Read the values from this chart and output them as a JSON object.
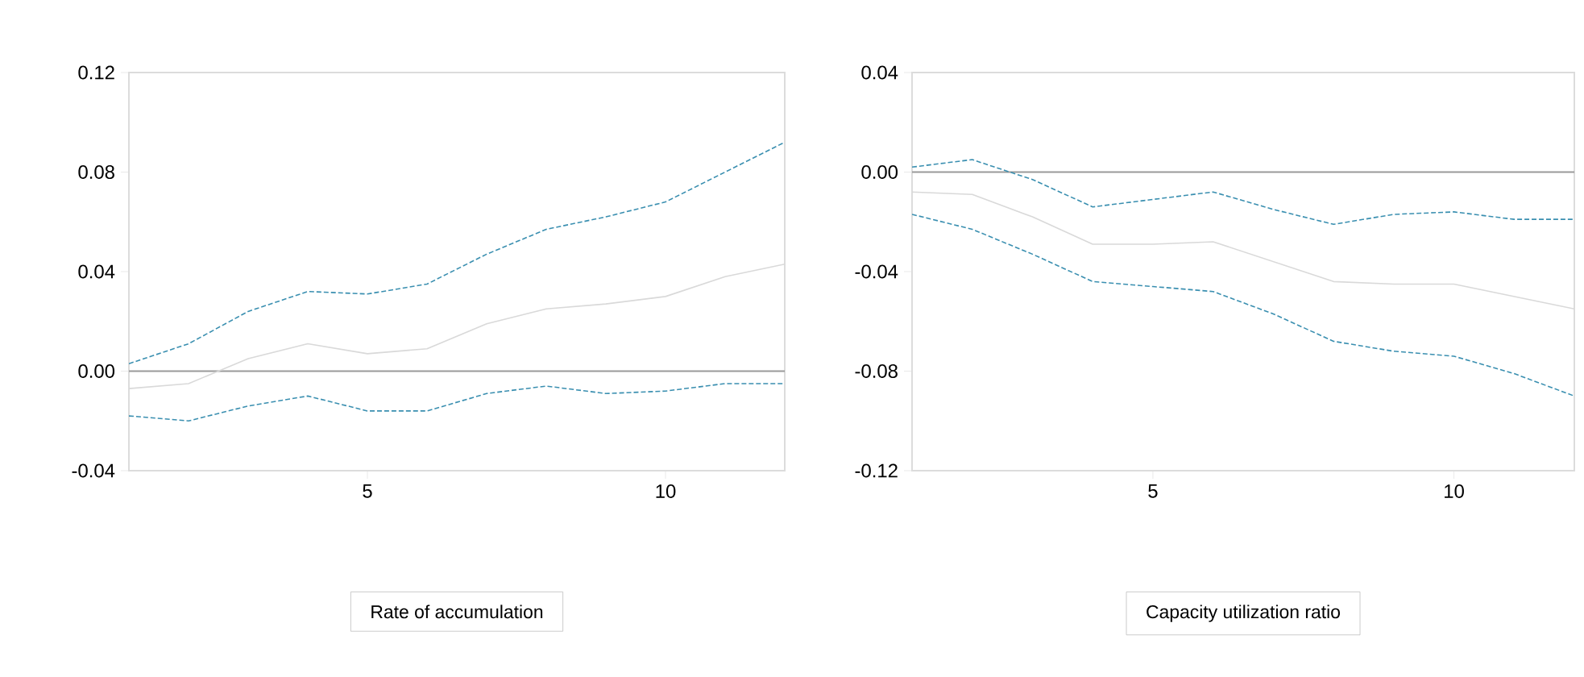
{
  "chart_data": [
    {
      "type": "line",
      "xlabel": "Rate of accumulation",
      "x": [
        1,
        2,
        3,
        4,
        5,
        6,
        7,
        8,
        9,
        10,
        11,
        12
      ],
      "xlim": [
        1,
        12
      ],
      "xticks": [
        5,
        10
      ],
      "ylim": [
        -0.04,
        0.12
      ],
      "yticks": [
        {
          "value": -0.04,
          "label": "-0.04"
        },
        {
          "value": 0,
          "label": "0.00"
        },
        {
          "value": 0.04,
          "label": "0.04"
        },
        {
          "value": 0.08,
          "label": "0.08"
        },
        {
          "value": 0.12,
          "label": "0.12"
        }
      ],
      "grid": false,
      "marker": "none",
      "ref_lines": [
        {
          "axis": "y",
          "value": 0,
          "color": "#9a9a9a",
          "line_style": "solid"
        }
      ],
      "series": [
        {
          "color": "#3a8fb0",
          "line_style": "dashed",
          "values": [
            0.003,
            0.011,
            0.024,
            0.032,
            0.031,
            0.035,
            0.047,
            0.057,
            0.062,
            0.068,
            0.08,
            0.092
          ]
        },
        {
          "color": "#d9d9d9",
          "line_style": "solid",
          "values": [
            -0.007,
            -0.005,
            0.005,
            0.011,
            0.007,
            0.009,
            0.019,
            0.025,
            0.027,
            0.03,
            0.038,
            0.043
          ]
        },
        {
          "color": "#3a8fb0",
          "line_style": "dashed",
          "values": [
            -0.018,
            -0.02,
            -0.014,
            -0.01,
            -0.016,
            -0.016,
            -0.009,
            -0.006,
            -0.009,
            -0.008,
            -0.005,
            -0.005
          ]
        }
      ]
    },
    {
      "type": "line",
      "xlabel": "Capacity utilization ratio",
      "x": [
        1,
        2,
        3,
        4,
        5,
        6,
        7,
        8,
        9,
        10,
        11,
        12
      ],
      "xlim": [
        1,
        12
      ],
      "xticks": [
        5,
        10
      ],
      "ylim": [
        -0.12,
        0.04
      ],
      "yticks": [
        {
          "value": -0.12,
          "label": "-0.12"
        },
        {
          "value": -0.08,
          "label": "-0.08"
        },
        {
          "value": -0.04,
          "label": "-0.04"
        },
        {
          "value": 0,
          "label": "0.00"
        },
        {
          "value": 0.04,
          "label": "0.04"
        }
      ],
      "grid": false,
      "marker": "none",
      "ref_lines": [
        {
          "axis": "y",
          "value": 0,
          "color": "#9a9a9a",
          "line_style": "solid"
        }
      ],
      "series": [
        {
          "color": "#3a8fb0",
          "line_style": "dashed",
          "values": [
            0.002,
            0.005,
            -0.003,
            -0.014,
            -0.011,
            -0.008,
            -0.015,
            -0.021,
            -0.017,
            -0.016,
            -0.019,
            -0.019
          ]
        },
        {
          "color": "#d9d9d9",
          "line_style": "solid",
          "values": [
            -0.008,
            -0.009,
            -0.018,
            -0.029,
            -0.029,
            -0.028,
            -0.036,
            -0.044,
            -0.045,
            -0.045,
            -0.05,
            -0.055
          ]
        },
        {
          "color": "#3a8fb0",
          "line_style": "dashed",
          "values": [
            -0.017,
            -0.023,
            -0.033,
            -0.044,
            -0.046,
            -0.048,
            -0.057,
            -0.068,
            -0.072,
            -0.074,
            -0.081,
            -0.09
          ]
        }
      ]
    }
  ]
}
